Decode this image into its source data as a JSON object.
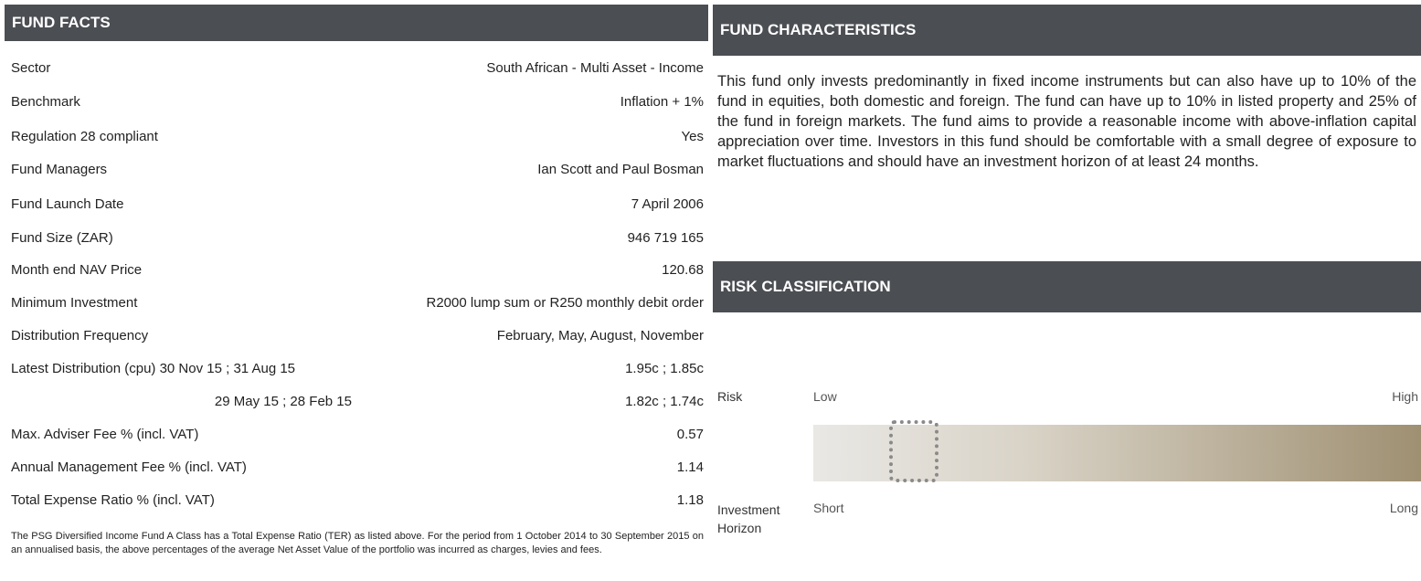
{
  "fund_facts": {
    "title": "FUND FACTS",
    "rows": [
      {
        "label": "Sector",
        "value": "South African - Multi Asset - Income"
      },
      {
        "label": "Benchmark",
        "value": "Inflation + 1%"
      },
      {
        "label": "Regulation 28 compliant",
        "value": "Yes"
      },
      {
        "label": "Fund Managers",
        "value": "Ian Scott and Paul Bosman"
      },
      {
        "label": "Fund Launch Date",
        "value": "7 April 2006"
      },
      {
        "label": "Fund Size (ZAR)",
        "value": "946 719 165"
      },
      {
        "label": "Month end NAV Price",
        "value": "120.68"
      },
      {
        "label": "Minimum Investment",
        "value": "R2000 lump sum or R250 monthly debit order"
      },
      {
        "label": "Distribution Frequency",
        "value": "February, May, August, November"
      },
      {
        "label": "Latest Distribution (cpu) 30 Nov 15 ; 31 Aug 15",
        "value": "1.95c ; 1.85c"
      },
      {
        "label": "29 May 15 ; 28 Feb 15",
        "value": "1.82c ; 1.74c"
      },
      {
        "label": "Max. Adviser Fee % (incl. VAT)",
        "value": "0.57"
      },
      {
        "label": "Annual Management Fee % (incl. VAT)",
        "value": "1.14"
      },
      {
        "label": "Total Expense Ratio % (incl. VAT)",
        "value": "1.18"
      }
    ],
    "footnote": "The PSG Diversified Income Fund A Class has a Total Expense Ratio (TER) as listed above. For the period from 1 October 2014 to 30 September 2015 on an annualised basis, the above percentages of the average Net Asset Value of the portfolio was incurred as charges, levies and fees."
  },
  "fund_characteristics": {
    "title": "FUND CHARACTERISTICS",
    "text": "This fund only invests predominantly in fixed income instruments but can also have up to 10% of the fund in equities, both domestic and foreign. The fund can have up to 10% in listed property and 25% of the fund in foreign markets. The fund aims to provide a reasonable income with above-inflation capital appreciation over time. Investors in this fund should be comfortable with a small degree of exposure to market fluctuations and should have an investment horizon of at least 24 months."
  },
  "risk_classification": {
    "title": "RISK CLASSIFICATION",
    "risk_label": "Risk",
    "risk_low": "Low",
    "risk_high": "High",
    "horizon_label": "Investment Horizon",
    "horizon_short": "Short",
    "horizon_long": "Long"
  }
}
